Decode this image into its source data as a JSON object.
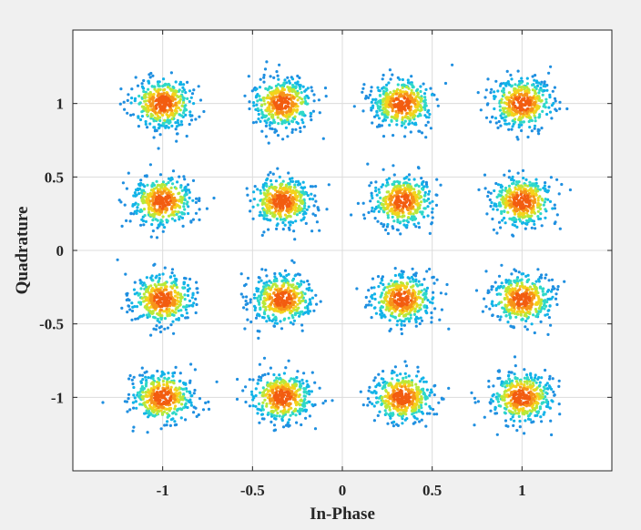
{
  "chart_data": {
    "type": "scatter",
    "title": "",
    "xlabel": "In-Phase",
    "ylabel": "Quadrature",
    "xlim": [
      -1.5,
      1.5
    ],
    "ylim": [
      -1.5,
      1.5
    ],
    "grid": true,
    "legend": "none",
    "x_ticks": [
      -1,
      -0.5,
      0,
      0.5,
      1
    ],
    "x_tick_labels": [
      "-1",
      "-0.5",
      "0",
      "0.5",
      "1"
    ],
    "y_ticks": [
      -1,
      -0.5,
      0,
      0.5,
      1
    ],
    "y_tick_labels": [
      "-1",
      "-0.5",
      "0",
      "0.5",
      "1"
    ],
    "constellation_levels": [
      -1,
      -0.3333,
      0.3333,
      1
    ],
    "cluster_spread_sd": 0.085,
    "points_per_cluster": 420,
    "colormap": [
      "#1f8fe0",
      "#12b3e8",
      "#2fd8c8",
      "#b8e83a",
      "#f5d21c",
      "#f7931a",
      "#f25c10"
    ],
    "background_color": "#f0f0f0",
    "axes_color": "#ffffff",
    "grid_color": "#dcdcdc"
  }
}
